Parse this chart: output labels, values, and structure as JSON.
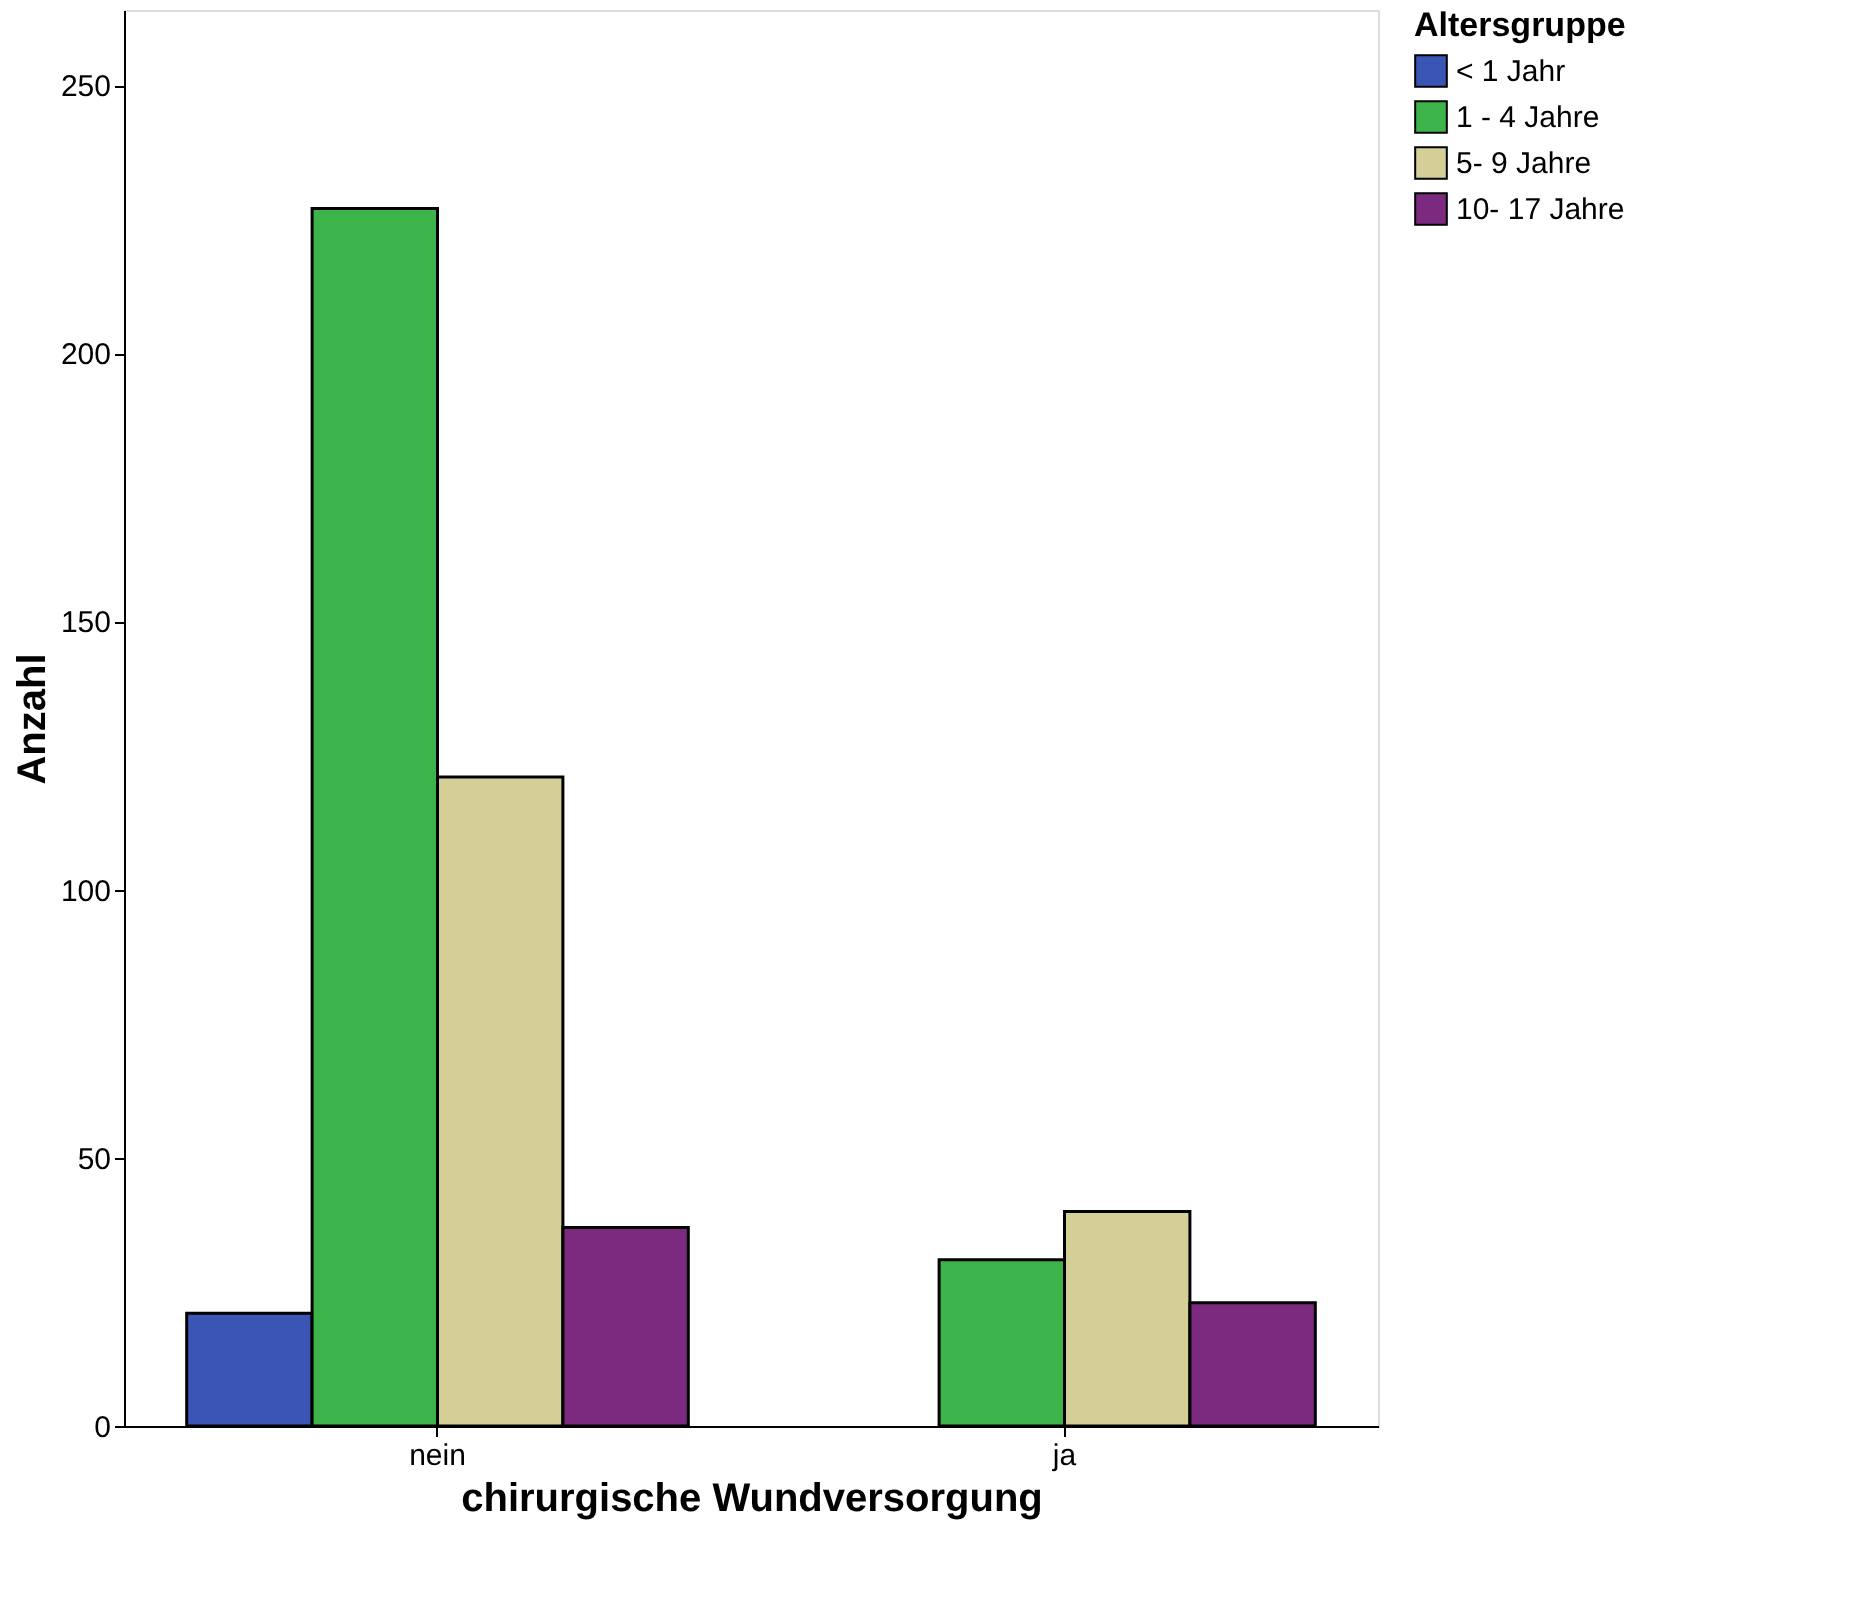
{
  "chart_data": {
    "type": "bar",
    "xlabel": "chirurgische Wundversorgung",
    "ylabel": "Anzahl",
    "legend_title": "Altersgruppe",
    "categories": [
      "nein",
      "ja"
    ],
    "series": [
      {
        "name": "< 1 Jahr",
        "color": "#3b55b5",
        "values": [
          21,
          null
        ]
      },
      {
        "name": "1 - 4 Jahre",
        "color": "#3cb44a",
        "values": [
          227,
          31
        ]
      },
      {
        "name": " 5- 9 Jahre",
        "color": "#d4cf96",
        "values": [
          121,
          40
        ]
      },
      {
        "name": "10- 17  Jahre",
        "color": "#7b2a80",
        "values": [
          37,
          23
        ]
      }
    ],
    "ylim": [
      0,
      264
    ],
    "yticks": [
      0,
      50,
      100,
      150,
      200,
      250
    ],
    "grid": false,
    "legend": "right"
  }
}
